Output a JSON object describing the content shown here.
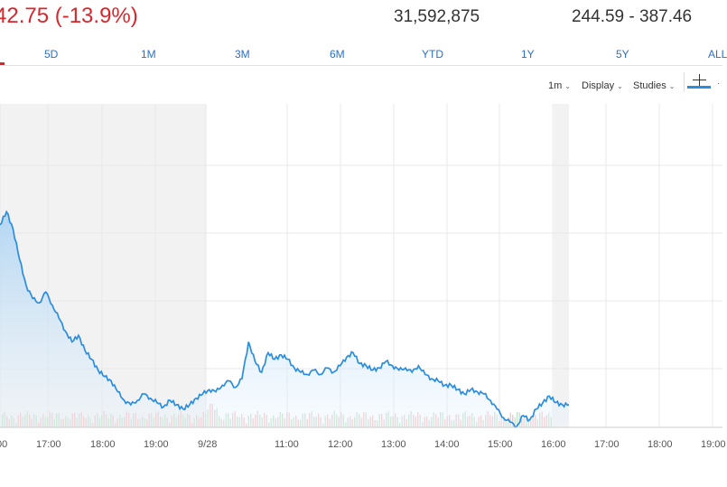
{
  "quote": {
    "change": "42.75 (-13.9%)",
    "volume": "31,592,875",
    "day_range": "244.59 - 387.46"
  },
  "tabs": [
    {
      "label": "5D"
    },
    {
      "label": "1M"
    },
    {
      "label": "3M"
    },
    {
      "label": "6M"
    },
    {
      "label": "YTD"
    },
    {
      "label": "1Y"
    },
    {
      "label": "5Y"
    },
    {
      "label": "ALL"
    }
  ],
  "toolbar": {
    "interval": "1m",
    "display": "Display",
    "studies": "Studies",
    "crosshair_icon": "crosshair-icon"
  },
  "colors": {
    "negative": "#d9262c",
    "link": "#2a6fcc",
    "line": "#2a8de0",
    "volume_up": "#c7e3cc",
    "volume_down": "#f3c8c8"
  },
  "chart_data": {
    "type": "area",
    "x_tick_labels": [
      "00",
      "17:00",
      "18:00",
      "19:00",
      "9/28",
      "11:00",
      "12:00",
      "13:00",
      "14:00",
      "15:00",
      "16:00",
      "17:00",
      "18:00",
      "19:00"
    ],
    "series": [
      {
        "values": [
          372,
          378,
          370,
          356,
          344,
          338,
          336,
          341,
          335,
          329,
          323,
          318,
          321,
          314,
          310,
          305,
          302,
          300,
          295,
          291,
          289,
          291,
          294,
          292,
          290,
          288,
          291,
          289,
          287,
          289,
          292,
          294,
          296,
          295,
          298,
          300,
          297,
          301,
          318,
          309,
          304,
          313,
          310,
          312,
          310,
          306,
          304,
          303,
          305,
          303,
          306,
          304,
          307,
          311,
          313,
          308,
          307,
          305,
          306,
          309,
          307,
          305,
          306,
          304,
          307,
          303,
          301,
          300,
          298,
          298,
          296,
          294,
          296,
          295,
          294,
          291,
          287,
          283,
          281,
          279,
          284,
          282,
          287,
          290,
          293,
          290,
          289,
          289
        ]
      }
    ],
    "volume_note": "volume bars shown at bottom"
  }
}
